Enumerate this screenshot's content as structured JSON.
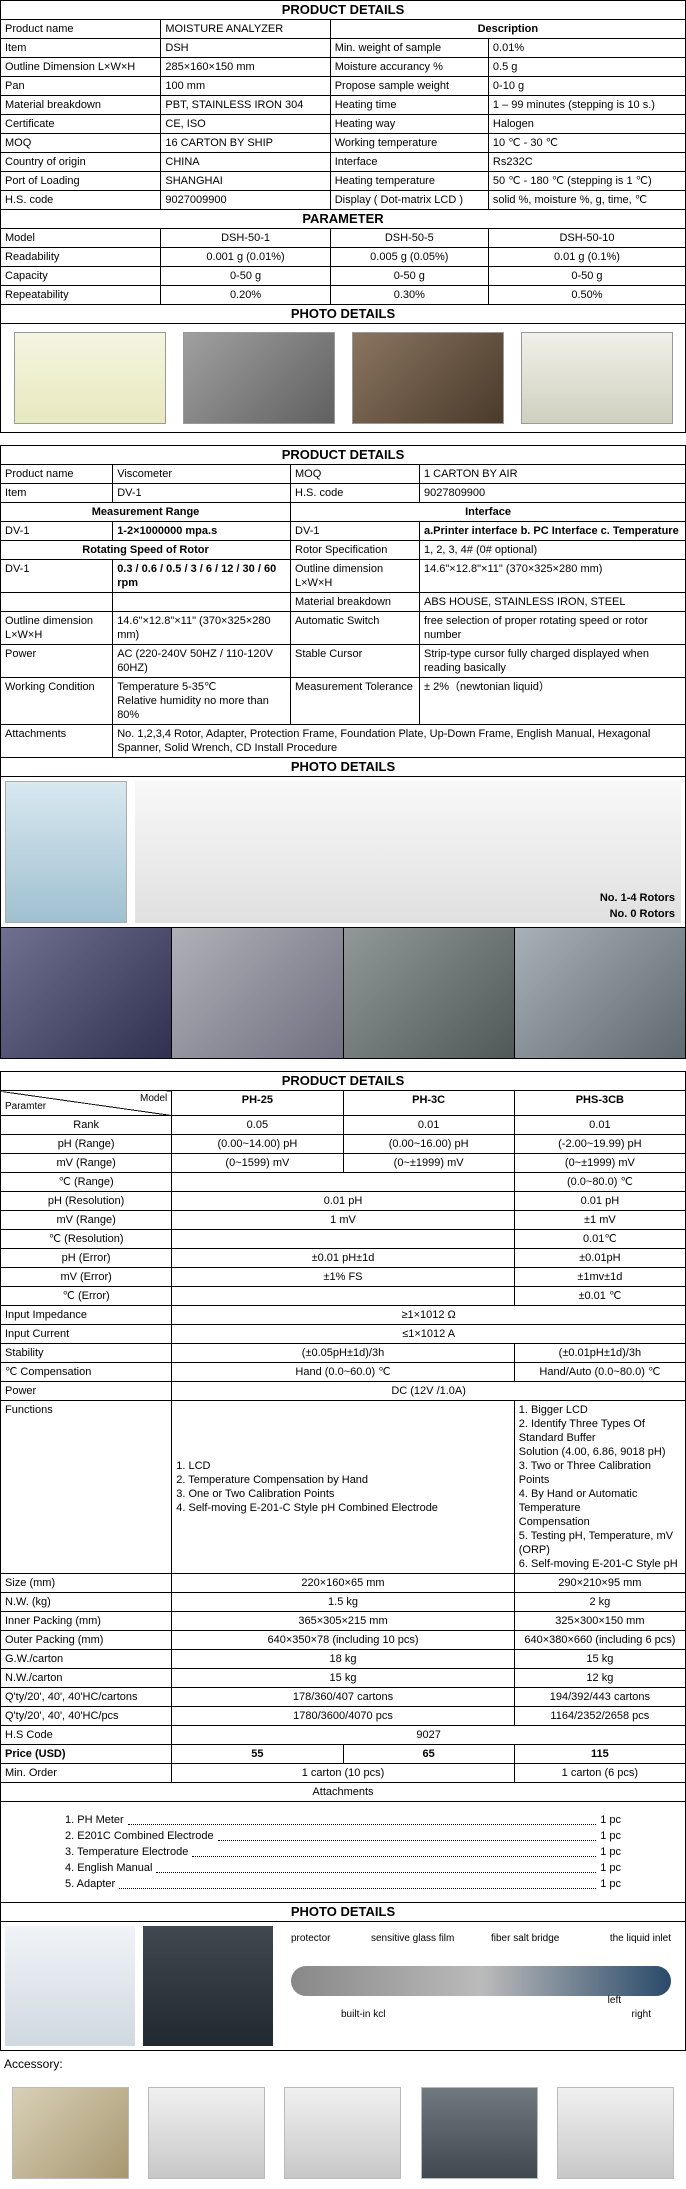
{
  "s1": {
    "header": "PRODUCT DETAILS",
    "desc": "Description",
    "rows_left": [
      [
        "Product name",
        "MOISTURE ANALYZER"
      ],
      [
        "Item",
        "DSH"
      ],
      [
        "Outline Dimension L×W×H",
        "285×160×150 mm"
      ],
      [
        "Pan",
        "100 mm"
      ],
      [
        "Material breakdown",
        "PBT, STAINLESS IRON 304"
      ],
      [
        "Certificate",
        "CE, ISO"
      ],
      [
        "MOQ",
        "16 CARTON BY SHIP"
      ],
      [
        "Country of origin",
        "CHINA"
      ],
      [
        "Port of Loading",
        "SHANGHAI"
      ],
      [
        "H.S. code",
        "9027009900"
      ]
    ],
    "rows_right": [
      [
        "Min. weight of sample",
        "0.01%"
      ],
      [
        "Moisture accurancy %",
        "0.5 g"
      ],
      [
        "Propose sample weight",
        "0-10 g"
      ],
      [
        "Heating time",
        "1 – 99 minutes (stepping is 10 s.)"
      ],
      [
        "Heating way",
        "Halogen"
      ],
      [
        "Working temperature",
        "10 ℃ - 30 ℃"
      ],
      [
        "Interface",
        "Rs232C"
      ],
      [
        "Heating temperature",
        "50 ℃ - 180 ℃ (stepping is 1 ℃)"
      ],
      [
        "Display ( Dot-matrix LCD )",
        "solid %, moisture %, g, time, ℃"
      ]
    ],
    "param_h": "PARAMETER",
    "param_cols": [
      "Model",
      "DSH-50-1",
      "DSH-50-5",
      "DSH-50-10"
    ],
    "param_rows": [
      [
        "Readability",
        "0.001 g (0.01%)",
        "0.005 g (0.05%)",
        "0.01 g (0.1%)"
      ],
      [
        "Capacity",
        "0-50 g",
        "0-50 g",
        "0-50 g"
      ],
      [
        "Repeatability",
        "0.20%",
        "0.30%",
        "0.50%"
      ]
    ],
    "photo_h": "PHOTO DETAILS"
  },
  "s2": {
    "header": "PRODUCT DETAILS",
    "top": [
      [
        "Product name",
        "Viscometer",
        "MOQ",
        "1 CARTON BY AIR"
      ],
      [
        "Item",
        "DV-1",
        "H.S. code",
        "9027809900"
      ]
    ],
    "mr": "Measurement Range",
    "if": "Interface",
    "r1": [
      "DV-1",
      "1-2×1000000 mpa.s",
      "DV-1",
      "a.Printer interface b. PC Interface c. Temperature"
    ],
    "rs": "Rotating Speed of Rotor",
    "r2a": [
      "Rotor Specification",
      "1, 2, 3, 4# (0# optional)"
    ],
    "r2": [
      "DV-1",
      "0.3 / 0.6 / 0.5 / 3 / 6 / 12 / 30 / 60 rpm",
      "Outline dimension  L×W×H",
      "14.6\"×12.8\"×11\" (370×325×280 mm)"
    ],
    "r3": [
      "",
      "",
      "Material breakdown",
      "ABS HOUSE, STAINLESS  IRON, STEEL"
    ],
    "r4": [
      "Outline dimension  L×W×H",
      "14.6\"×12.8\"×11\" (370×325×280 mm)",
      "Automatic Switch",
      "free selection of proper rotating speed or rotor number"
    ],
    "r5": [
      "Power",
      "AC (220-240V 50HZ / 110-120V 60HZ)",
      "Stable Cursor",
      "Strip-type cursor fully charged displayed when reading basically"
    ],
    "r6": [
      "Working Condition",
      "Temperature 5-35℃\nRelative humidity no more than 80%",
      "Measurement Tolerance",
      "± 2%（newtonian liquid）"
    ],
    "r7": [
      "Attachments",
      "No. 1,2,3,4 Rotor, Adapter, Protection Frame, Foundation Plate, Up-Down Frame, English Manual, Hexagonal Spanner, Solid Wrench, CD Install Procedure"
    ],
    "photo_h": "PHOTO DETAILS",
    "rot14": "No. 1-4 Rotors",
    "rot0": "No. 0 Rotors"
  },
  "s3": {
    "header": "PRODUCT DETAILS",
    "corner": {
      "p": "Paramter",
      "m": "Model"
    },
    "cols": [
      "PH-25",
      "PH-3C",
      "PHS-3CB"
    ],
    "rows": [
      {
        "l": "Rank",
        "v": [
          "0.05",
          "0.01",
          "0.01"
        ]
      },
      {
        "l": "pH (Range)",
        "v": [
          "(0.00~14.00) pH",
          "(0.00~16.00) pH",
          "(-2.00~19.99) pH"
        ]
      },
      {
        "l": "mV (Range)",
        "v": [
          "(0~1599) mV",
          "(0~±1999) mV",
          "(0~±1999) mV"
        ]
      },
      {
        "l": "℃ (Range)",
        "v": [
          "",
          "",
          "(0.0~80.0) ℃"
        ],
        "span2": true,
        "s2v": ""
      },
      {
        "l": "pH (Resolution)",
        "v": [
          "",
          "",
          "0.01 pH"
        ],
        "span2": true,
        "s2v": "0.01 pH"
      },
      {
        "l": "mV (Range)",
        "v": [
          "",
          "",
          "±1 mV"
        ],
        "span2": true,
        "s2v": "1 mV"
      },
      {
        "l": "℃ (Resolution)",
        "v": [
          "",
          "",
          "0.01℃"
        ],
        "span2": true,
        "s2v": ""
      },
      {
        "l": "pH (Error)",
        "v": [
          "",
          "",
          "±0.01pH"
        ],
        "span2": true,
        "s2v": "±0.01 pH±1d"
      },
      {
        "l": "mV (Error)",
        "v": [
          "",
          "",
          "±1mv±1d"
        ],
        "span2": true,
        "s2v": "±1% FS"
      },
      {
        "l": "℃ (Error)",
        "v": [
          "",
          "",
          "±0.01 ℃"
        ],
        "span2": true,
        "s2v": ""
      }
    ],
    "full": [
      [
        "Input Impedance",
        "≥1×1012 Ω"
      ],
      [
        "Input Current",
        "≤1×1012 A"
      ]
    ],
    "rows2": [
      {
        "l": "Stability",
        "v": [
          "(±0.05pH±1d)/3h",
          "",
          "(±0.01pH±1d)/3h"
        ],
        "mid_empty": true,
        "span2": false,
        "s2v": "(±0.05pH±1d)/3h",
        "c3": "(±0.01pH±1d)/3h"
      },
      {
        "l": "℃ Compensation",
        "v": [
          "Hand (0.0~60.0) ℃",
          "",
          "Hand/Auto (0.0~80.0) ℃"
        ],
        "span2": false
      }
    ],
    "power": [
      "Power",
      "DC (12V /1.0A)"
    ],
    "func_l": "Functions",
    "func1": "1. LCD\n2. Temperature Compensation by Hand\n3. One or Two Calibration Points\n4. Self-moving E-201-C Style pH Combined Electrode",
    "func2": "1. Bigger LCD\n2. Identify Three Types Of Standard Buffer\nSolution (4.00, 6.86, 9018 pH)\n3. Two or Three Calibration Points\n4. By Hand or Automatic Temperature\nCompensation\n5. Testing pH, Temperature, mV (ORP)\n6. Self-moving E-201-C Style pH",
    "rows3": [
      {
        "l": "Size (mm)",
        "s2v": "220×160×65 mm",
        "c3": "290×210×95 mm"
      },
      {
        "l": "N.W. (kg)",
        "s2v": "1.5 kg",
        "c3": "2 kg"
      },
      {
        "l": "Inner Packing (mm)",
        "s2v": "365×305×215 mm",
        "c3": "325×300×150 mm"
      },
      {
        "l": "Outer Packing (mm)",
        "s2v": "640×350×78 (including 10 pcs)",
        "c3": "640×380×660 (including 6 pcs)"
      },
      {
        "l": "G.W./carton",
        "s2v": "18 kg",
        "c3": "15 kg"
      },
      {
        "l": "N.W./carton",
        "s2v": "15 kg",
        "c3": "12 kg"
      },
      {
        "l": "Q'ty/20', 40', 40'HC/cartons",
        "s2v": "178/360/407 cartons",
        "c3": "194/392/443 cartons"
      },
      {
        "l": "Q'ty/20', 40', 40'HC/pcs",
        "s2v": "1780/3600/4070 pcs",
        "c3": "1164/2352/2658 pcs"
      }
    ],
    "hs": [
      "H.S Code",
      "9027"
    ],
    "price": {
      "l": "Price (USD)",
      "v": [
        "55",
        "65",
        "115"
      ]
    },
    "min": {
      "l": "Min. Order",
      "s2v": "1 carton (10 pcs)",
      "c3": "1 carton (6 pcs)"
    },
    "att_h": "Attachments",
    "att": [
      [
        "1. PH Meter",
        "1 pc"
      ],
      [
        "2. E201C Combined Electrode",
        "1 pc"
      ],
      [
        "3. Temperature Electrode",
        "1 pc"
      ],
      [
        "4. English Manual",
        "1 pc"
      ],
      [
        "5. Adapter",
        "1 pc"
      ]
    ],
    "photo_h": "PHOTO DETAILS",
    "diag": {
      "protector": "protector",
      "sensitive": "sensitive glass film",
      "fiber": "fiber salt bridge",
      "liquid": "the liquid inlet",
      "builtin": "built-in kcl",
      "left": "left",
      "right": "right"
    },
    "acc": "Accessory:"
  }
}
